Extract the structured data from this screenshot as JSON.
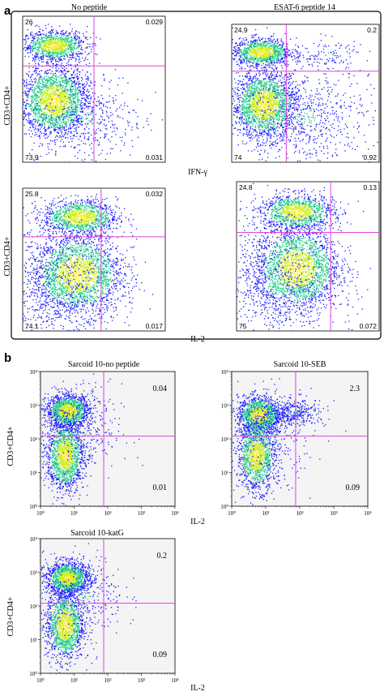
{
  "panel_labels": {
    "a": "a",
    "b": "b"
  },
  "colors": {
    "gate": "#dd44dd",
    "low": "#1a1aff",
    "mid": "#22cc88",
    "high": "#ccee22",
    "peak": "#ffee33"
  },
  "chart_data": [
    {
      "type": "scatter",
      "id": "a1",
      "title": "No peptide",
      "xlabel": "",
      "ylabel": "CD3+CD4+",
      "quadrants": {
        "ul": "26",
        "ur": "0.029",
        "ll": "73.9",
        "lr": "0.031"
      },
      "populations": [
        {
          "cx": 0.22,
          "cy": 0.8,
          "sx": 0.11,
          "sy": 0.05,
          "n": 1100
        },
        {
          "cx": 0.22,
          "cy": 0.42,
          "sx": 0.12,
          "sy": 0.12,
          "n": 2200
        },
        {
          "cx": 0.45,
          "cy": 0.3,
          "sx": 0.2,
          "sy": 0.18,
          "n": 420
        }
      ],
      "gate": {
        "x": 0.5,
        "y": 0.66
      }
    },
    {
      "type": "scatter",
      "id": "a2",
      "title": "ESAT-6 peptide 14",
      "xlabel": "IFN-γ",
      "ylabel": "",
      "quadrants": {
        "ul": "24.9",
        "ur": "0.2",
        "ll": "74",
        "lr": "0.92"
      },
      "populations": [
        {
          "cx": 0.2,
          "cy": 0.8,
          "sx": 0.1,
          "sy": 0.05,
          "n": 1100
        },
        {
          "cx": 0.22,
          "cy": 0.42,
          "sx": 0.11,
          "sy": 0.12,
          "n": 2100
        },
        {
          "cx": 0.5,
          "cy": 0.33,
          "sx": 0.22,
          "sy": 0.18,
          "n": 650
        },
        {
          "cx": 0.65,
          "cy": 0.78,
          "sx": 0.12,
          "sy": 0.06,
          "n": 120
        }
      ],
      "gate": {
        "x": 0.37,
        "y": 0.66
      }
    },
    {
      "type": "scatter",
      "id": "a3",
      "title": "",
      "xlabel": "",
      "ylabel": "CD3+CD4+",
      "quadrants": {
        "ul": "25.8",
        "ur": "0.032",
        "ll": "74.1",
        "lr": "0.017"
      },
      "populations": [
        {
          "cx": 0.4,
          "cy": 0.8,
          "sx": 0.13,
          "sy": 0.06,
          "n": 1200
        },
        {
          "cx": 0.38,
          "cy": 0.4,
          "sx": 0.16,
          "sy": 0.14,
          "n": 2200
        },
        {
          "cx": 0.25,
          "cy": 0.3,
          "sx": 0.22,
          "sy": 0.2,
          "n": 700
        }
      ],
      "gate": {
        "x": 0.55,
        "y": 0.66
      }
    },
    {
      "type": "scatter",
      "id": "a4",
      "title": "",
      "xlabel": "IL-2",
      "ylabel": "",
      "quadrants": {
        "ul": "24.8",
        "ur": "0.13",
        "ll": "75",
        "lr": "0.072"
      },
      "populations": [
        {
          "cx": 0.42,
          "cy": 0.8,
          "sx": 0.13,
          "sy": 0.06,
          "n": 1200
        },
        {
          "cx": 0.42,
          "cy": 0.42,
          "sx": 0.15,
          "sy": 0.14,
          "n": 2200
        },
        {
          "cx": 0.28,
          "cy": 0.3,
          "sx": 0.22,
          "sy": 0.2,
          "n": 700
        }
      ],
      "gate": {
        "x": 0.66,
        "y": 0.66
      }
    },
    {
      "type": "scatter",
      "id": "b1",
      "title": "Sarcoid 10-no peptide",
      "xlabel": "",
      "ylabel": "CD3+CD4+",
      "x_ticks": [
        "10⁰",
        "10¹",
        "10²",
        "10³",
        "10⁴"
      ],
      "y_ticks": [
        "10⁰",
        "10¹",
        "10²",
        "10³",
        "10⁴"
      ],
      "quadrants": {
        "ul": "",
        "ur": "0.04",
        "ll": "",
        "lr": "0.01"
      },
      "populations": [
        {
          "cx": 0.2,
          "cy": 0.71,
          "sx": 0.08,
          "sy": 0.06,
          "n": 1400
        },
        {
          "cx": 0.18,
          "cy": 0.38,
          "sx": 0.07,
          "sy": 0.13,
          "n": 1500
        },
        {
          "cx": 0.3,
          "cy": 0.55,
          "sx": 0.15,
          "sy": 0.18,
          "n": 300
        }
      ],
      "gate": {
        "x": 0.47,
        "y": 0.52
      }
    },
    {
      "type": "scatter",
      "id": "b2",
      "title": "Sarcoid 10-SEB",
      "xlabel": "IL-2",
      "ylabel": "",
      "x_ticks": [
        "10⁰",
        "10¹",
        "10²",
        "10³",
        "10⁴"
      ],
      "y_ticks": [
        "10⁰",
        "10¹",
        "10²",
        "10³",
        "10⁴"
      ],
      "quadrants": {
        "ul": "",
        "ur": "2.3",
        "ll": "",
        "lr": "0.09"
      },
      "populations": [
        {
          "cx": 0.2,
          "cy": 0.68,
          "sx": 0.08,
          "sy": 0.07,
          "n": 1300
        },
        {
          "cx": 0.18,
          "cy": 0.38,
          "sx": 0.07,
          "sy": 0.13,
          "n": 1300
        },
        {
          "cx": 0.45,
          "cy": 0.7,
          "sx": 0.12,
          "sy": 0.05,
          "n": 350
        },
        {
          "cx": 0.3,
          "cy": 0.5,
          "sx": 0.15,
          "sy": 0.18,
          "n": 250
        }
      ],
      "gate": {
        "x": 0.47,
        "y": 0.52
      }
    },
    {
      "type": "scatter",
      "id": "b3",
      "title": "Sarcoid 10-katG",
      "xlabel": "IL-2",
      "ylabel": "CD3+CD4+",
      "x_ticks": [
        "10⁰",
        "10¹",
        "10²",
        "10³",
        "10⁴"
      ],
      "y_ticks": [
        "10⁰",
        "10¹",
        "10²",
        "10³",
        "10⁴"
      ],
      "quadrants": {
        "ul": "",
        "ur": "0.2",
        "ll": "",
        "lr": "0.09"
      },
      "populations": [
        {
          "cx": 0.2,
          "cy": 0.71,
          "sx": 0.08,
          "sy": 0.06,
          "n": 1400
        },
        {
          "cx": 0.18,
          "cy": 0.36,
          "sx": 0.07,
          "sy": 0.13,
          "n": 1400
        },
        {
          "cx": 0.32,
          "cy": 0.58,
          "sx": 0.15,
          "sy": 0.15,
          "n": 300
        }
      ],
      "gate": {
        "x": 0.47,
        "y": 0.52
      }
    }
  ]
}
